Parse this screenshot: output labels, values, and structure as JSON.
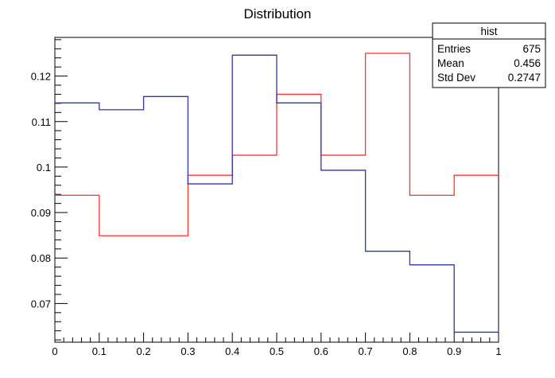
{
  "chart_data": {
    "type": "histogram",
    "title": "Distribution",
    "xlabel": "",
    "ylabel": "",
    "xlim": [
      0,
      1
    ],
    "ylim": [
      0.0615,
      0.1285
    ],
    "bin_edges": [
      0,
      0.1,
      0.2,
      0.3,
      0.4,
      0.5,
      0.6,
      0.7,
      0.8,
      0.9,
      1
    ],
    "x_ticks": [
      "0",
      "0.1",
      "0.2",
      "0.3",
      "0.4",
      "0.5",
      "0.6",
      "0.7",
      "0.8",
      "0.9",
      "1"
    ],
    "y_ticks": [
      0.07,
      0.08,
      0.09,
      0.1,
      0.11,
      0.12
    ],
    "y_tick_labels": [
      "0.07",
      "0.08",
      "0.09",
      "0.1",
      "0.11",
      "0.12"
    ],
    "grid": false,
    "series": [
      {
        "color": "#ff3333",
        "values": [
          0.0938,
          0.0849,
          0.0849,
          0.0982,
          0.1026,
          0.116,
          0.1026,
          0.125,
          0.0938,
          0.0982
        ]
      },
      {
        "color": "#3333aa",
        "values": [
          0.1141,
          0.1126,
          0.1155,
          0.0963,
          0.1246,
          0.1141,
          0.0993,
          0.0815,
          0.0785,
          0.0637
        ]
      }
    ],
    "stats_box": {
      "title": "hist",
      "rows": [
        {
          "label": "Entries",
          "value": "675"
        },
        {
          "label": "Mean",
          "value": "0.456"
        },
        {
          "label": "Std Dev",
          "value": "0.2747"
        }
      ]
    }
  }
}
